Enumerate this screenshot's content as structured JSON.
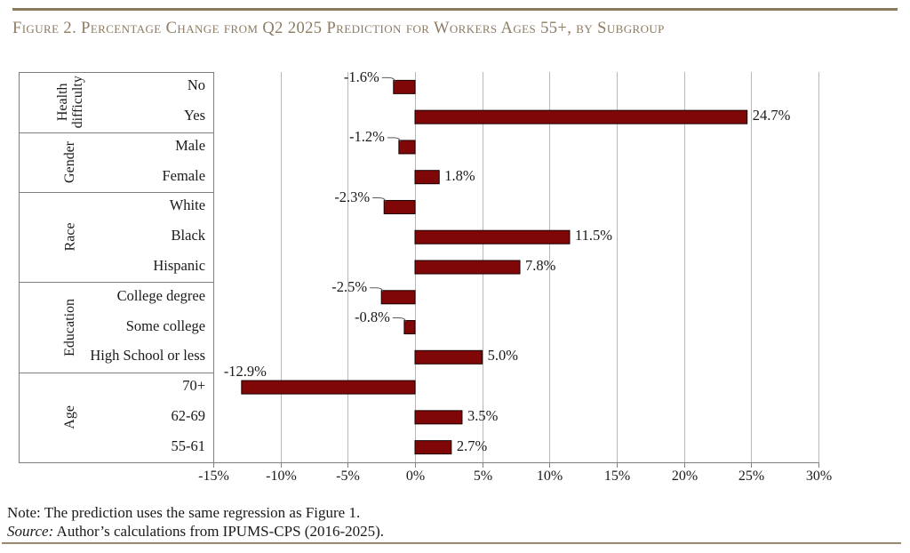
{
  "title": "Figure 2. Percentage Change from Q2 2025 Prediction for Workers Ages 55+, by Subgroup",
  "notes": {
    "note": "Note: The prediction uses the same regression as Figure 1.",
    "source_label": "Source:",
    "source_text": " Author’s calculations from IPUMS-CPS (2016-2025)."
  },
  "colors": {
    "bar_fill": "#800707",
    "bar_border": "#190000",
    "grid": "#b8b8b8",
    "frame": "#7f7f7f",
    "leader": "#5a5a5a",
    "title": "#8c7c64",
    "rule": "#8a7a5c",
    "text": "#1a1a1a"
  },
  "chart_data": {
    "type": "bar",
    "orientation": "horizontal",
    "title": "Figure 2. Percentage Change from Q2 2025 Prediction for Workers Ages 55+, by Subgroup",
    "xlabel": "",
    "ylabel": "",
    "xlim": [
      -15,
      30
    ],
    "grid": true,
    "value_label_suffix": "%",
    "groups": [
      {
        "label": "Health difficulty",
        "items": [
          {
            "label": "No",
            "value": -1.6,
            "display": "-1.6%"
          },
          {
            "label": "Yes",
            "value": 24.7,
            "display": "24.7%"
          }
        ]
      },
      {
        "label": "Gender",
        "items": [
          {
            "label": "Male",
            "value": -1.2,
            "display": "-1.2%"
          },
          {
            "label": "Female",
            "value": 1.8,
            "display": "1.8%"
          }
        ]
      },
      {
        "label": "Race",
        "items": [
          {
            "label": "White",
            "value": -2.3,
            "display": "-2.3%"
          },
          {
            "label": "Black",
            "value": 11.5,
            "display": "11.5%"
          },
          {
            "label": "Hispanic",
            "value": 7.8,
            "display": "7.8%"
          }
        ]
      },
      {
        "label": "Education",
        "items": [
          {
            "label": "College degree",
            "value": -2.5,
            "display": "-2.5%"
          },
          {
            "label": "Some college",
            "value": -0.8,
            "display": "-0.8%"
          },
          {
            "label": "High School or less",
            "value": 5.0,
            "display": "5.0%"
          }
        ]
      },
      {
        "label": "Age",
        "items": [
          {
            "label": "70+",
            "value": -12.9,
            "display": "-12.9%"
          },
          {
            "label": "62-69",
            "value": 3.5,
            "display": "3.5%"
          },
          {
            "label": "55-61",
            "value": 2.7,
            "display": "2.7%"
          }
        ]
      }
    ],
    "x_axis": {
      "min": -15,
      "max": 30,
      "step": 5,
      "tick_labels": [
        "-15%",
        "-10%",
        "-5%",
        "0%",
        "5%",
        "10%",
        "15%",
        "20%",
        "25%",
        "30%"
      ]
    }
  }
}
